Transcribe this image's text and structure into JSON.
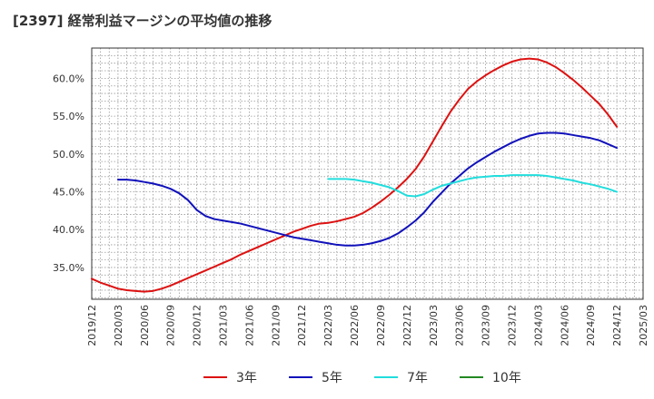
{
  "title": "[2397]  経常利益マージンの平均値の推移",
  "chart_data": {
    "type": "line",
    "title": "[2397]  経常利益マージンの平均値の推移",
    "xlabel": "",
    "ylabel": "",
    "grid": true,
    "legend_position": "bottom",
    "x_range": [
      "2019-12",
      "2025-03"
    ],
    "ylim": [
      30.8,
      64.0
    ],
    "x_ticks": [
      "2019/12",
      "2020/03",
      "2020/06",
      "2020/09",
      "2020/12",
      "2021/03",
      "2021/06",
      "2021/09",
      "2021/12",
      "2022/03",
      "2022/06",
      "2022/09",
      "2022/12",
      "2023/03",
      "2023/06",
      "2023/09",
      "2023/12",
      "2024/03",
      "2024/06",
      "2024/09",
      "2024/12",
      "2025/03"
    ],
    "y_ticks": [
      {
        "value": 35,
        "label": "35.0%"
      },
      {
        "value": 40,
        "label": "40.0%"
      },
      {
        "value": 45,
        "label": "45.0%"
      },
      {
        "value": 50,
        "label": "50.0%"
      },
      {
        "value": 55,
        "label": "55.0%"
      },
      {
        "value": 60,
        "label": "60.0%"
      }
    ],
    "series": [
      {
        "name": "3年",
        "color": "#dd1111",
        "points": [
          [
            "2019-12",
            33.5
          ],
          [
            "2020-01",
            33.0
          ],
          [
            "2020-02",
            32.6
          ],
          [
            "2020-03",
            32.2
          ],
          [
            "2020-04",
            32.0
          ],
          [
            "2020-05",
            31.9
          ],
          [
            "2020-06",
            31.8
          ],
          [
            "2020-07",
            31.9
          ],
          [
            "2020-08",
            32.2
          ],
          [
            "2020-09",
            32.6
          ],
          [
            "2020-10",
            33.1
          ],
          [
            "2020-11",
            33.6
          ],
          [
            "2020-12",
            34.1
          ],
          [
            "2021-01",
            34.6
          ],
          [
            "2021-02",
            35.1
          ],
          [
            "2021-03",
            35.6
          ],
          [
            "2021-04",
            36.1
          ],
          [
            "2021-05",
            36.7
          ],
          [
            "2021-06",
            37.2
          ],
          [
            "2021-07",
            37.7
          ],
          [
            "2021-08",
            38.2
          ],
          [
            "2021-09",
            38.7
          ],
          [
            "2021-10",
            39.2
          ],
          [
            "2021-11",
            39.7
          ],
          [
            "2021-12",
            40.1
          ],
          [
            "2022-01",
            40.5
          ],
          [
            "2022-02",
            40.8
          ],
          [
            "2022-03",
            40.9
          ],
          [
            "2022-04",
            41.1
          ],
          [
            "2022-05",
            41.4
          ],
          [
            "2022-06",
            41.7
          ],
          [
            "2022-07",
            42.2
          ],
          [
            "2022-08",
            42.9
          ],
          [
            "2022-09",
            43.7
          ],
          [
            "2022-10",
            44.6
          ],
          [
            "2022-11",
            45.6
          ],
          [
            "2022-12",
            46.7
          ],
          [
            "2023-01",
            48.0
          ],
          [
            "2023-02",
            49.7
          ],
          [
            "2023-03",
            51.7
          ],
          [
            "2023-04",
            53.7
          ],
          [
            "2023-05",
            55.6
          ],
          [
            "2023-06",
            57.2
          ],
          [
            "2023-07",
            58.6
          ],
          [
            "2023-08",
            59.6
          ],
          [
            "2023-09",
            60.4
          ],
          [
            "2023-10",
            61.1
          ],
          [
            "2023-11",
            61.7
          ],
          [
            "2023-12",
            62.2
          ],
          [
            "2024-01",
            62.5
          ],
          [
            "2024-02",
            62.6
          ],
          [
            "2024-03",
            62.5
          ],
          [
            "2024-04",
            62.1
          ],
          [
            "2024-05",
            61.5
          ],
          [
            "2024-06",
            60.7
          ],
          [
            "2024-07",
            59.8
          ],
          [
            "2024-08",
            58.8
          ],
          [
            "2024-09",
            57.7
          ],
          [
            "2024-10",
            56.6
          ],
          [
            "2024-11",
            55.2
          ],
          [
            "2024-12",
            53.6
          ]
        ]
      },
      {
        "name": "5年",
        "color": "#1111bb",
        "points": [
          [
            "2020-03",
            46.6
          ],
          [
            "2020-04",
            46.6
          ],
          [
            "2020-05",
            46.5
          ],
          [
            "2020-06",
            46.3
          ],
          [
            "2020-07",
            46.1
          ],
          [
            "2020-08",
            45.8
          ],
          [
            "2020-09",
            45.4
          ],
          [
            "2020-10",
            44.8
          ],
          [
            "2020-11",
            43.9
          ],
          [
            "2020-12",
            42.6
          ],
          [
            "2021-01",
            41.8
          ],
          [
            "2021-02",
            41.4
          ],
          [
            "2021-03",
            41.2
          ],
          [
            "2021-04",
            41.0
          ],
          [
            "2021-05",
            40.8
          ],
          [
            "2021-06",
            40.5
          ],
          [
            "2021-07",
            40.2
          ],
          [
            "2021-08",
            39.9
          ],
          [
            "2021-09",
            39.6
          ],
          [
            "2021-10",
            39.3
          ],
          [
            "2021-11",
            39.0
          ],
          [
            "2021-12",
            38.8
          ],
          [
            "2022-01",
            38.6
          ],
          [
            "2022-02",
            38.4
          ],
          [
            "2022-03",
            38.2
          ],
          [
            "2022-04",
            38.0
          ],
          [
            "2022-05",
            37.9
          ],
          [
            "2022-06",
            37.9
          ],
          [
            "2022-07",
            38.0
          ],
          [
            "2022-08",
            38.2
          ],
          [
            "2022-09",
            38.5
          ],
          [
            "2022-10",
            38.9
          ],
          [
            "2022-11",
            39.5
          ],
          [
            "2022-12",
            40.3
          ],
          [
            "2023-01",
            41.2
          ],
          [
            "2023-02",
            42.3
          ],
          [
            "2023-03",
            43.7
          ],
          [
            "2023-04",
            44.9
          ],
          [
            "2023-05",
            46.1
          ],
          [
            "2023-06",
            47.1
          ],
          [
            "2023-07",
            48.1
          ],
          [
            "2023-08",
            48.9
          ],
          [
            "2023-09",
            49.6
          ],
          [
            "2023-10",
            50.3
          ],
          [
            "2023-11",
            50.9
          ],
          [
            "2023-12",
            51.5
          ],
          [
            "2024-01",
            52.0
          ],
          [
            "2024-02",
            52.4
          ],
          [
            "2024-03",
            52.7
          ],
          [
            "2024-04",
            52.8
          ],
          [
            "2024-05",
            52.8
          ],
          [
            "2024-06",
            52.7
          ],
          [
            "2024-07",
            52.5
          ],
          [
            "2024-08",
            52.3
          ],
          [
            "2024-09",
            52.1
          ],
          [
            "2024-10",
            51.8
          ],
          [
            "2024-11",
            51.3
          ],
          [
            "2024-12",
            50.8
          ]
        ]
      },
      {
        "name": "7年",
        "color": "#22dddd",
        "points": [
          [
            "2022-03",
            46.7
          ],
          [
            "2022-04",
            46.7
          ],
          [
            "2022-05",
            46.7
          ],
          [
            "2022-06",
            46.6
          ],
          [
            "2022-07",
            46.4
          ],
          [
            "2022-08",
            46.2
          ],
          [
            "2022-09",
            45.9
          ],
          [
            "2022-10",
            45.6
          ],
          [
            "2022-11",
            45.1
          ],
          [
            "2022-12",
            44.5
          ],
          [
            "2023-01",
            44.4
          ],
          [
            "2023-02",
            44.7
          ],
          [
            "2023-03",
            45.3
          ],
          [
            "2023-04",
            45.8
          ],
          [
            "2023-05",
            46.1
          ],
          [
            "2023-06",
            46.4
          ],
          [
            "2023-07",
            46.7
          ],
          [
            "2023-08",
            46.9
          ],
          [
            "2023-09",
            47.0
          ],
          [
            "2023-10",
            47.1
          ],
          [
            "2023-11",
            47.1
          ],
          [
            "2023-12",
            47.2
          ],
          [
            "2024-01",
            47.2
          ],
          [
            "2024-02",
            47.2
          ],
          [
            "2024-03",
            47.2
          ],
          [
            "2024-04",
            47.1
          ],
          [
            "2024-05",
            46.9
          ],
          [
            "2024-06",
            46.7
          ],
          [
            "2024-07",
            46.5
          ],
          [
            "2024-08",
            46.2
          ],
          [
            "2024-09",
            46.0
          ],
          [
            "2024-10",
            45.7
          ],
          [
            "2024-11",
            45.4
          ],
          [
            "2024-12",
            45.0
          ]
        ]
      },
      {
        "name": "10年",
        "color": "#228822",
        "points": []
      }
    ]
  }
}
